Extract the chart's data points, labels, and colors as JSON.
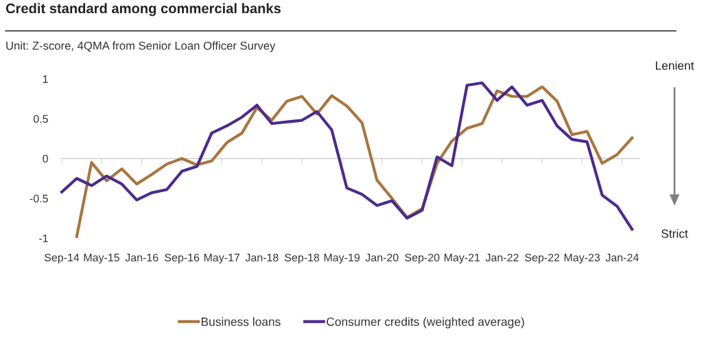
{
  "chart_data": {
    "type": "line",
    "title": "Credit standard among commercial banks",
    "subtitle": "Unit: Z-score, 4QMA from Senior Loan Officer Survey",
    "annotations": [
      "Lenient",
      "Strict"
    ],
    "x": [
      "2014-09",
      "2014-12",
      "2015-03",
      "2015-06",
      "2015-09",
      "2015-12",
      "2016-03",
      "2016-06",
      "2016-09",
      "2016-12",
      "2017-03",
      "2017-06",
      "2017-09",
      "2017-12",
      "2018-03",
      "2018-06",
      "2018-09",
      "2018-12",
      "2019-03",
      "2019-06",
      "2019-09",
      "2019-12",
      "2020-03",
      "2020-06",
      "2020-09",
      "2020-12",
      "2021-03",
      "2021-06",
      "2021-09",
      "2021-12",
      "2022-03",
      "2022-06",
      "2022-09",
      "2022-12",
      "2023-03",
      "2023-06",
      "2023-09",
      "2023-12",
      "2024-03"
    ],
    "series": [
      {
        "name": "Business loans",
        "color": "#a8753f",
        "values": [
          null,
          -0.98,
          -0.05,
          -0.28,
          -0.13,
          -0.32,
          -0.2,
          -0.07,
          0.0,
          -0.08,
          -0.03,
          0.2,
          0.32,
          0.64,
          0.48,
          0.72,
          0.78,
          0.56,
          0.79,
          0.66,
          0.45,
          -0.27,
          -0.5,
          -0.74,
          -0.63,
          -0.06,
          0.22,
          0.38,
          0.44,
          0.85,
          0.78,
          0.78,
          0.9,
          0.72,
          0.3,
          0.34,
          -0.06,
          0.05,
          0.26
        ]
      },
      {
        "name": "Consumer credits (weighted average)",
        "color": "#4b2a8c",
        "values": [
          -0.42,
          -0.25,
          -0.34,
          -0.22,
          -0.32,
          -0.52,
          -0.43,
          -0.39,
          -0.16,
          -0.1,
          0.32,
          0.41,
          0.52,
          0.67,
          0.44,
          0.46,
          0.48,
          0.59,
          0.36,
          -0.37,
          -0.45,
          -0.59,
          -0.53,
          -0.75,
          -0.65,
          0.02,
          -0.09,
          0.92,
          0.95,
          0.73,
          0.9,
          0.67,
          0.73,
          0.41,
          0.24,
          0.21,
          -0.46,
          -0.6,
          -0.89
        ]
      }
    ],
    "xlim": [
      "2014-09-01",
      "2024-04-15"
    ],
    "xticks": [
      {
        "value": "2014-09",
        "label": "Sep-14"
      },
      {
        "value": "2015-05",
        "label": "May-15"
      },
      {
        "value": "2016-01",
        "label": "Jan-16"
      },
      {
        "value": "2016-09",
        "label": "Sep-16"
      },
      {
        "value": "2017-05",
        "label": "May-17"
      },
      {
        "value": "2018-01",
        "label": "Jan-18"
      },
      {
        "value": "2018-09",
        "label": "Sep-18"
      },
      {
        "value": "2019-05",
        "label": "May-19"
      },
      {
        "value": "2020-01",
        "label": "Jan-20"
      },
      {
        "value": "2020-09",
        "label": "Sep-20"
      },
      {
        "value": "2021-05",
        "label": "May-21"
      },
      {
        "value": "2022-01",
        "label": "Jan-22"
      },
      {
        "value": "2022-09",
        "label": "Sep-22"
      },
      {
        "value": "2023-05",
        "label": "May-23"
      },
      {
        "value": "2024-01",
        "label": "Jan-24"
      }
    ],
    "ylim": [
      -1,
      1
    ],
    "ref_lines": [
      {
        "axis": "y",
        "value": 0,
        "color": "#d0d0d0"
      }
    ],
    "yticks": [
      -1,
      -0.5,
      0,
      0.5,
      1
    ],
    "grid": false,
    "legend": "bottom",
    "marker": "none",
    "line_style": "solid"
  }
}
